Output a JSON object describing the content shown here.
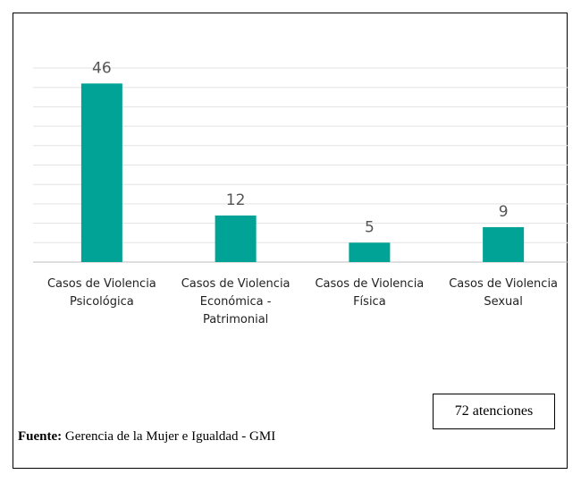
{
  "chart_data": {
    "type": "bar",
    "categories": [
      "Casos de Violencia Psicológica",
      "Casos de Violencia Económica - Patrimonial",
      "Casos de Violencia Física",
      "Casos de Violencia Sexual"
    ],
    "values": [
      46,
      12,
      5,
      9
    ],
    "color": "#00a396",
    "ylim": [
      0,
      50
    ],
    "yticks": [
      0,
      5,
      10,
      15,
      20,
      25,
      30,
      35,
      40,
      45,
      50
    ],
    "grid": true,
    "annotation": "72 atenciones"
  },
  "source": {
    "label": "Fuente:",
    "text": "Gerencia de la Mujer e Igualdad - GMI"
  }
}
